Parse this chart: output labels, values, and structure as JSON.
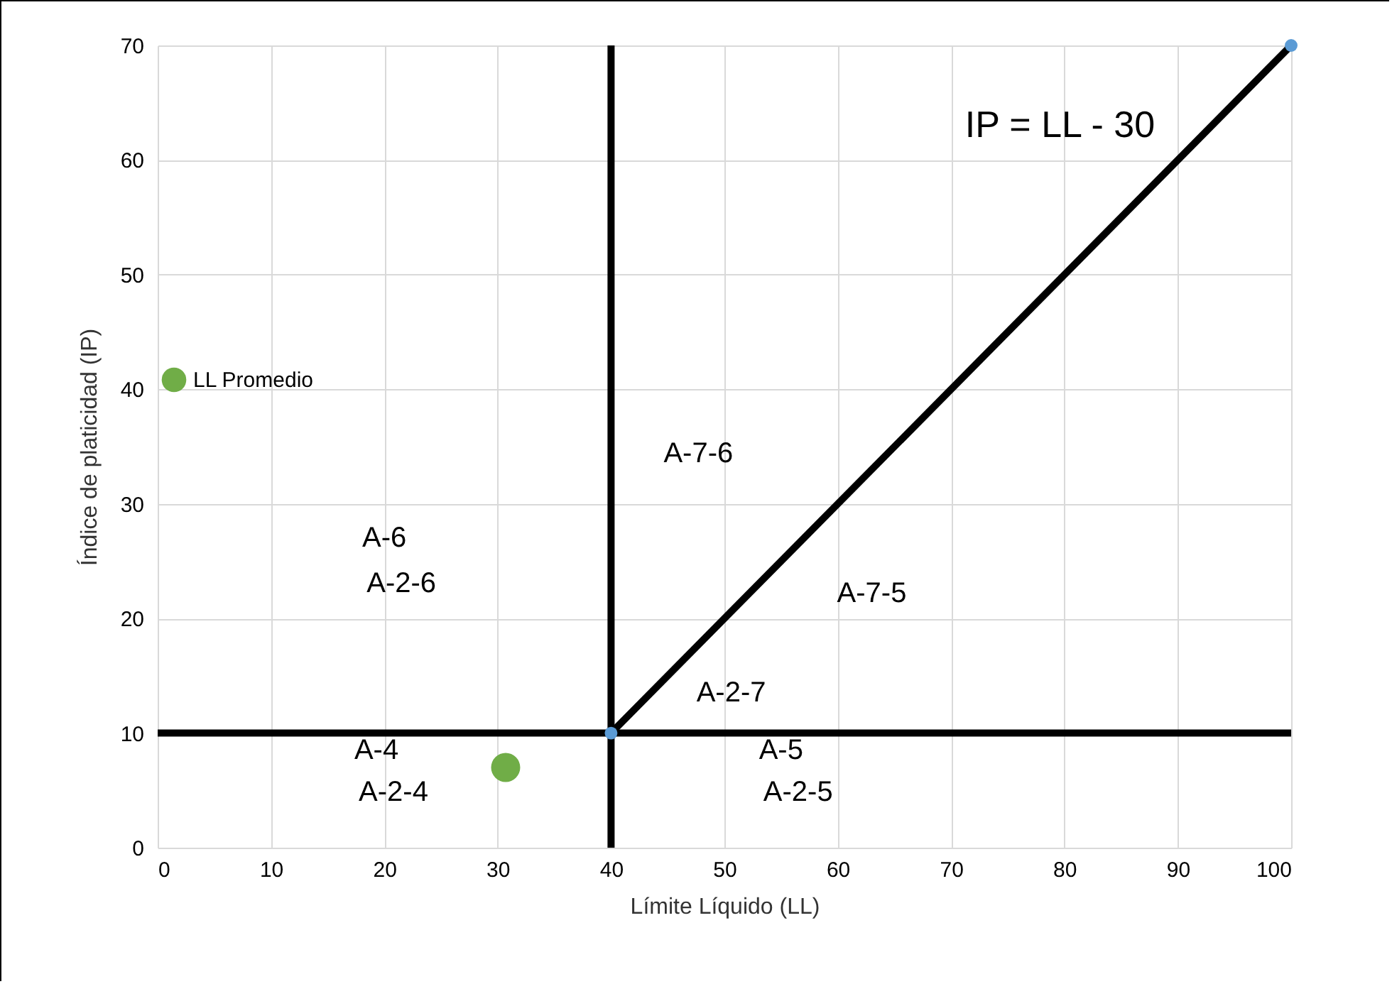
{
  "chart_data": {
    "type": "scatter",
    "xlabel": "Límite Líquido (LL)",
    "ylabel": "Índice de platicidad (IP)",
    "xlim": [
      0,
      100
    ],
    "ylim": [
      0,
      70
    ],
    "xticks": [
      0,
      10,
      20,
      30,
      40,
      50,
      60,
      70,
      80,
      90,
      100
    ],
    "yticks": [
      0,
      10,
      20,
      30,
      40,
      50,
      60,
      70
    ],
    "grid": true,
    "legend": "left",
    "marker": "circle",
    "series": [
      {
        "type": "line",
        "marker": "none",
        "color": "#000000",
        "x": [
          40,
          100
        ],
        "values": [
          10,
          70
        ]
      },
      {
        "type": "line",
        "marker": "none",
        "color": "#000000",
        "x": [
          0,
          100
        ],
        "values": [
          10,
          10
        ]
      },
      {
        "type": "line",
        "marker": "none",
        "color": "#000000",
        "x": [
          40,
          40
        ],
        "values": [
          0,
          70
        ]
      },
      {
        "color": "#5b9bd5",
        "x": [
          40,
          100
        ],
        "values": [
          10,
          70
        ]
      },
      {
        "name": "LL Promedio",
        "color": "#70ad47",
        "x": [
          30.7
        ],
        "values": [
          7
        ]
      }
    ],
    "annotations": [
      "IP = LL - 30",
      "A-7-6",
      "A-6",
      "A-2-6",
      "A-7-5",
      "A-2-7",
      "A-4",
      "A-2-4",
      "A-5",
      "A-2-5"
    ]
  }
}
